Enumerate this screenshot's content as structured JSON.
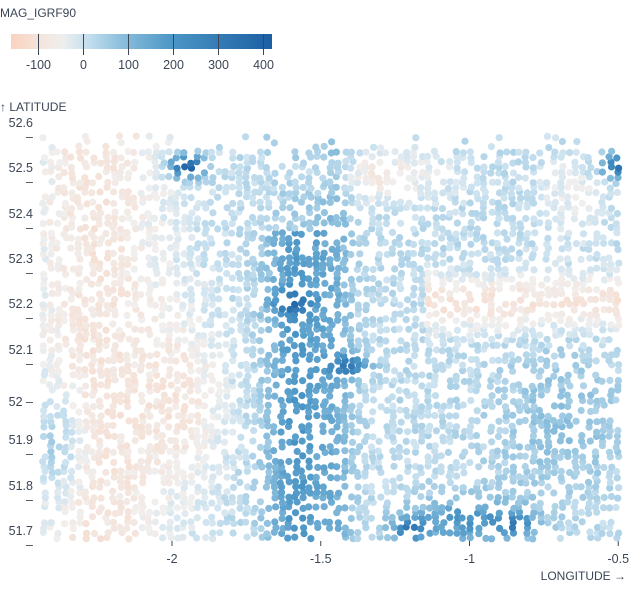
{
  "chart_data": {
    "type": "scatter",
    "title": "",
    "color_legend": {
      "title": "MAG_IGRF90",
      "ticks": [
        "-100",
        "0",
        "100",
        "200",
        "300",
        "400"
      ],
      "tick_values": [
        -100,
        0,
        100,
        200,
        300,
        400
      ],
      "domain": [
        -160,
        420
      ],
      "colors": [
        "#f9d3bf",
        "#f1efee",
        "#cde3f0",
        "#8fc1de",
        "#4a95c6",
        "#1c5fa3"
      ]
    },
    "xlabel": "LONGITUDE →",
    "ylabel": "↑ LATITUDE",
    "xlim": [
      -2.44,
      -0.47
    ],
    "ylim": [
      51.7,
      52.6
    ],
    "x_ticks": [
      "-2",
      "-1.5",
      "-1",
      "-0.5"
    ],
    "x_tick_values": [
      -2,
      -1.5,
      -1,
      -0.5
    ],
    "y_ticks": [
      "52.6",
      "52.5",
      "52.4",
      "52.3",
      "52.2",
      "52.1",
      "52",
      "51.9",
      "51.8",
      "51.7"
    ],
    "y_tick_values": [
      52.6,
      52.5,
      52.4,
      52.3,
      52.2,
      52.1,
      52.0,
      51.9,
      51.8,
      51.7
    ],
    "grid": false,
    "legend_position": "top-left",
    "description": "Dense scatter of aeromagnetic survey points colored by MAG_IGRF90 (diverging orange-white-blue). Negative anomaly (~-100) in west (lon -2.4 to -2.0) and east band around lat 52.2 (lon -1.1 to -0.55); strong positive (~300-400) near lon -1.95, lat 52.52 and lon -0.5, lat 52.52; positive blue ridge (~100-250) along lon -1.7 to -1.45 from lat 52.35 down to 51.7; positive cluster lon -1.15 to -0.8 near lat 51.72.",
    "anomalies": [
      {
        "lon": -1.95,
        "lat": 52.52,
        "value": 400
      },
      {
        "lon": -0.5,
        "lat": 52.52,
        "value": 300
      },
      {
        "lon": -1.6,
        "lat": 52.22,
        "value": 220
      },
      {
        "lon": -1.4,
        "lat": 52.08,
        "value": 250
      },
      {
        "lon": -1.2,
        "lat": 51.72,
        "value": 260
      },
      {
        "lon": -0.85,
        "lat": 51.73,
        "value": 200
      },
      {
        "lon": -2.35,
        "lat": 52.25,
        "value": -110
      },
      {
        "lon": -1.95,
        "lat": 51.98,
        "value": -90
      },
      {
        "lon": -0.8,
        "lat": 52.22,
        "value": -120
      },
      {
        "lon": -1.35,
        "lat": 52.52,
        "value": -100
      }
    ]
  }
}
